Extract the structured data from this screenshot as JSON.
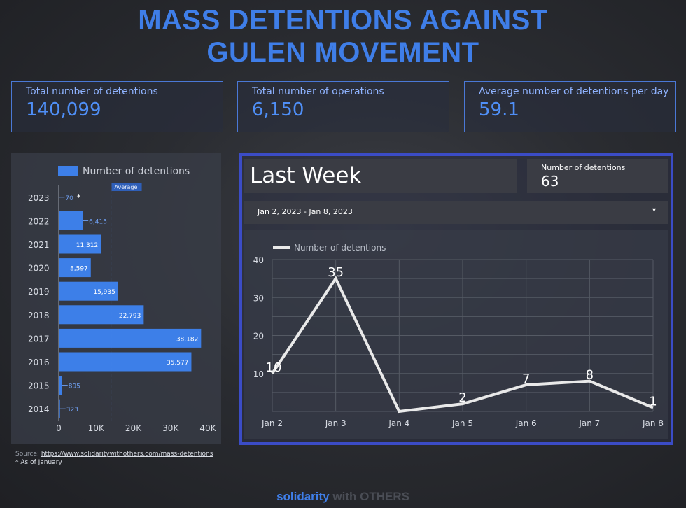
{
  "title": {
    "line1": "MASS DETENTIONS AGAINST",
    "line2": "GULEN MOVEMENT"
  },
  "kpis": [
    {
      "label": "Total number of detentions",
      "value": "140,099"
    },
    {
      "label": "Total number of operations",
      "value": "6,150"
    },
    {
      "label": "Average number of detentions per day",
      "value": "59.1"
    }
  ],
  "bar_note": "*",
  "source": {
    "prefix": "Source: ",
    "link": "https://www.solidaritywithothers.com/mass-detentions",
    "note": "* As of January"
  },
  "last_week": {
    "title": "Last Week",
    "metric_label": "Number of detentions",
    "metric_value": "63",
    "date_range": "Jan 2, 2023 - Jan 8, 2023",
    "caret": "▾"
  },
  "footer": {
    "part1": "solidarity",
    "part2": " with OTHERS"
  },
  "colors": {
    "bar": "#3d7fe8",
    "line": "#e9e9e9",
    "title": "#3f7ee8",
    "panel_border": "#3b4cc6"
  },
  "chart_data": [
    {
      "type": "bar",
      "orientation": "horizontal",
      "legend": "Number of detentions",
      "categories": [
        "2023",
        "2022",
        "2021",
        "2020",
        "2019",
        "2018",
        "2017",
        "2016",
        "2015",
        "2014"
      ],
      "values": [
        70,
        6415,
        11312,
        8597,
        15935,
        22793,
        38182,
        35577,
        895,
        323
      ],
      "value_labels": [
        "70",
        "6,415",
        "11,312",
        "8,597",
        "15,935",
        "22,793",
        "38,182",
        "35,577",
        "895",
        "323"
      ],
      "xticks": [
        "0",
        "10K",
        "20K",
        "30K",
        "40K"
      ],
      "xlim": [
        0,
        40000
      ],
      "reference_line": {
        "label": "Average",
        "value": 14000
      }
    },
    {
      "type": "line",
      "legend": "Number of detentions",
      "x": [
        "Jan 2",
        "Jan 3",
        "Jan 4",
        "Jan 5",
        "Jan 6",
        "Jan 7",
        "Jan 8"
      ],
      "values": [
        10,
        35,
        0,
        2,
        7,
        8,
        1
      ],
      "point_labels": [
        "10",
        "35",
        "",
        "2",
        "7",
        "8",
        "1"
      ],
      "yticks": [
        "10",
        "20",
        "30",
        "40"
      ],
      "ylim": [
        0,
        40
      ],
      "grid": true
    }
  ]
}
